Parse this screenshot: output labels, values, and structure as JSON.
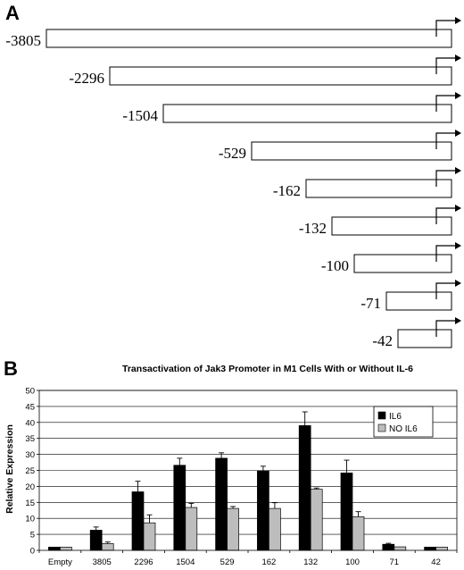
{
  "panel_a": {
    "label": "A",
    "constructs": [
      {
        "label": "-3805",
        "start": -3805
      },
      {
        "label": "-2296",
        "start": -2296
      },
      {
        "label": "-1504",
        "start": -1504
      },
      {
        "label": "-529",
        "start": -529
      },
      {
        "label": "-162",
        "start": -162
      },
      {
        "label": "-132",
        "start": -132
      },
      {
        "label": "-100",
        "start": -100
      },
      {
        "label": "-71",
        "start": -71
      },
      {
        "label": "-42",
        "start": -42
      }
    ]
  },
  "panel_b": {
    "label": "B"
  },
  "chart_data": {
    "type": "bar",
    "title": "Transactivation of Jak3 Promoter in M1 Cells With or Without IL-6",
    "xlabel": "",
    "ylabel": "Relative Expression",
    "ylim": [
      0,
      50
    ],
    "yticks": [
      "0",
      "5",
      "10",
      "15",
      "20",
      "25",
      "30",
      "35",
      "40",
      "45",
      "50"
    ],
    "grid": true,
    "legend_position": "right",
    "categories": [
      "Empty",
      "3805",
      "2296",
      "1504",
      "529",
      "162",
      "132",
      "100",
      "71",
      "42"
    ],
    "series": [
      {
        "name": "IL6",
        "color": "#000000",
        "values": [
          1,
          6.3,
          18.3,
          26.6,
          28.8,
          24.8,
          39,
          24.2,
          1.9,
          1
        ],
        "errors": [
          0,
          1.0,
          3.3,
          2.2,
          1.7,
          1.5,
          4.3,
          4.0,
          0.3,
          0
        ]
      },
      {
        "name": "NO IL6",
        "color": "#bdbdbd",
        "values": [
          1,
          2.1,
          8.6,
          13.4,
          13.1,
          13.1,
          19.1,
          10.5,
          1.1,
          1
        ],
        "errors": [
          0,
          0.5,
          2.5,
          1.3,
          0.6,
          1.8,
          0.4,
          1.6,
          0,
          0
        ]
      }
    ]
  }
}
